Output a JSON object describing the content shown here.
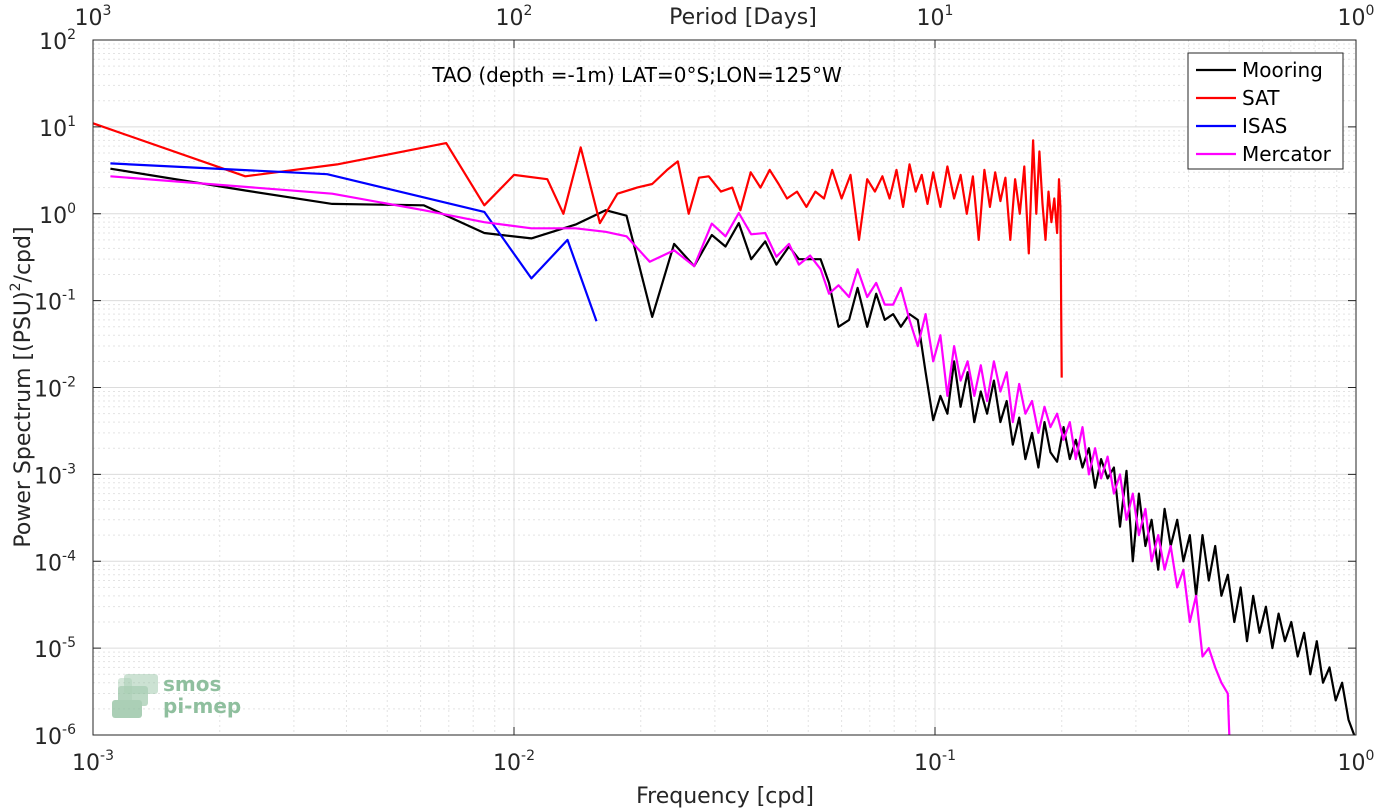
{
  "chart_data": {
    "type": "line",
    "title": "TAO (depth =-1m) LAT=0°S;LON=125°W",
    "xlabel": "Frequency [cpd]",
    "ylabel": "Power Spectrum [(PSU)",
    "ylabel_sup": "2",
    "ylabel_tail": "/cpd]",
    "x2label": "Period [Days]",
    "xscale": "log",
    "yscale": "log",
    "xlim": [
      0.001,
      1
    ],
    "ylim": [
      1e-06,
      100
    ],
    "grid": true,
    "legend_position": "top-right",
    "x_ticks": [
      "10",
      "10",
      "10",
      "10"
    ],
    "x_tick_exps": [
      "-3",
      "-2",
      "-1",
      "0"
    ],
    "y_ticks": [
      "10",
      "10",
      "10",
      "10",
      "10",
      "10",
      "10",
      "10",
      "10"
    ],
    "y_tick_exps": [
      "-6",
      "-5",
      "-4",
      "-3",
      "-2",
      "-1",
      "0",
      "1",
      "2"
    ],
    "x2_ticks": [
      "10",
      "10",
      "10",
      "10"
    ],
    "x2_tick_exps": [
      "3",
      "2",
      "1",
      "0"
    ],
    "series": [
      {
        "name": "Mooring",
        "color": "#000000",
        "points": [
          [
            0.0011,
            3.3
          ],
          [
            0.0023,
            1.85
          ],
          [
            0.0037,
            1.3
          ],
          [
            0.0061,
            1.25
          ],
          [
            0.0085,
            0.6
          ],
          [
            0.011,
            0.52
          ],
          [
            0.014,
            0.75
          ],
          [
            0.0165,
            1.1
          ],
          [
            0.0185,
            0.95
          ],
          [
            0.0213,
            0.065
          ],
          [
            0.024,
            0.45
          ],
          [
            0.0268,
            0.25
          ],
          [
            0.0295,
            0.57
          ],
          [
            0.0318,
            0.42
          ],
          [
            0.0342,
            0.78
          ],
          [
            0.0366,
            0.3
          ],
          [
            0.0395,
            0.48
          ],
          [
            0.042,
            0.26
          ],
          [
            0.045,
            0.42
          ],
          [
            0.0475,
            0.3
          ],
          [
            0.0505,
            0.3
          ],
          [
            0.0535,
            0.3
          ],
          [
            0.056,
            0.16
          ],
          [
            0.059,
            0.05
          ],
          [
            0.0625,
            0.06
          ],
          [
            0.0655,
            0.14
          ],
          [
            0.069,
            0.05
          ],
          [
            0.0725,
            0.12
          ],
          [
            0.076,
            0.06
          ],
          [
            0.0795,
            0.07
          ],
          [
            0.083,
            0.05
          ],
          [
            0.087,
            0.07
          ],
          [
            0.091,
            0.06
          ],
          [
            0.095,
            0.015
          ],
          [
            0.099,
            0.0042
          ],
          [
            0.103,
            0.008
          ],
          [
            0.107,
            0.005
          ],
          [
            0.111,
            0.02
          ],
          [
            0.115,
            0.006
          ],
          [
            0.1195,
            0.015
          ],
          [
            0.124,
            0.004
          ],
          [
            0.1285,
            0.009
          ],
          [
            0.133,
            0.005
          ],
          [
            0.138,
            0.012
          ],
          [
            0.143,
            0.004
          ],
          [
            0.148,
            0.007
          ],
          [
            0.153,
            0.0022
          ],
          [
            0.1585,
            0.0045
          ],
          [
            0.164,
            0.0015
          ],
          [
            0.17,
            0.003
          ],
          [
            0.176,
            0.0012
          ],
          [
            0.182,
            0.004
          ],
          [
            0.188,
            0.0018
          ],
          [
            0.195,
            0.0014
          ],
          [
            0.202,
            0.0035
          ],
          [
            0.209,
            0.0015
          ],
          [
            0.216,
            0.0025
          ],
          [
            0.224,
            0.0012
          ],
          [
            0.232,
            0.002
          ],
          [
            0.24,
            0.0007
          ],
          [
            0.248,
            0.0015
          ],
          [
            0.257,
            0.0009
          ],
          [
            0.266,
            0.0012
          ],
          [
            0.275,
            0.00025
          ],
          [
            0.285,
            0.0011
          ],
          [
            0.295,
            0.0001
          ],
          [
            0.305,
            0.0006
          ],
          [
            0.316,
            0.00015
          ],
          [
            0.327,
            0.0003
          ],
          [
            0.339,
            8e-05
          ],
          [
            0.351,
            0.0004
          ],
          [
            0.363,
            0.00015
          ],
          [
            0.376,
            0.0003
          ],
          [
            0.389,
            0.0001
          ],
          [
            0.403,
            0.0002
          ],
          [
            0.417,
            4e-05
          ],
          [
            0.432,
            0.0002
          ],
          [
            0.447,
            6e-05
          ],
          [
            0.463,
            0.00015
          ],
          [
            0.479,
            4e-05
          ],
          [
            0.496,
            7e-05
          ],
          [
            0.514,
            2e-05
          ],
          [
            0.532,
            5e-05
          ],
          [
            0.551,
            1.2e-05
          ],
          [
            0.57,
            4e-05
          ],
          [
            0.59,
            1.5e-05
          ],
          [
            0.611,
            3e-05
          ],
          [
            0.633,
            1e-05
          ],
          [
            0.655,
            2.5e-05
          ],
          [
            0.678,
            1.2e-05
          ],
          [
            0.702,
            2e-05
          ],
          [
            0.727,
            8e-06
          ],
          [
            0.753,
            1.5e-05
          ],
          [
            0.779,
            5e-06
          ],
          [
            0.807,
            1.2e-05
          ],
          [
            0.835,
            4e-06
          ],
          [
            0.865,
            6e-06
          ],
          [
            0.895,
            2.5e-06
          ],
          [
            0.927,
            4e-06
          ],
          [
            0.96,
            1.5e-06
          ],
          [
            0.99,
            1e-06
          ]
        ]
      },
      {
        "name": "SAT",
        "color": "#ff0000",
        "points": [
          [
            0.001,
            11.0
          ],
          [
            0.0023,
            2.7
          ],
          [
            0.0038,
            3.7
          ],
          [
            0.0069,
            6.5
          ],
          [
            0.0085,
            1.25
          ],
          [
            0.01,
            2.8
          ],
          [
            0.012,
            2.5
          ],
          [
            0.0131,
            1.0
          ],
          [
            0.0144,
            5.8
          ],
          [
            0.016,
            0.78
          ],
          [
            0.0176,
            1.7
          ],
          [
            0.0196,
            2.0
          ],
          [
            0.0213,
            2.2
          ],
          [
            0.0231,
            3.2
          ],
          [
            0.0245,
            4.0
          ],
          [
            0.026,
            1.0
          ],
          [
            0.0275,
            2.6
          ],
          [
            0.029,
            2.7
          ],
          [
            0.031,
            1.8
          ],
          [
            0.033,
            2.0
          ],
          [
            0.0345,
            1.1
          ],
          [
            0.0365,
            3.0
          ],
          [
            0.0385,
            2.0
          ],
          [
            0.0405,
            3.2
          ],
          [
            0.0425,
            2.2
          ],
          [
            0.0445,
            1.5
          ],
          [
            0.047,
            1.8
          ],
          [
            0.0495,
            1.2
          ],
          [
            0.052,
            1.8
          ],
          [
            0.0545,
            1.5
          ],
          [
            0.057,
            3.2
          ],
          [
            0.06,
            1.5
          ],
          [
            0.063,
            2.8
          ],
          [
            0.066,
            0.5
          ],
          [
            0.069,
            2.5
          ],
          [
            0.072,
            1.8
          ],
          [
            0.075,
            2.7
          ],
          [
            0.078,
            1.5
          ],
          [
            0.081,
            3.2
          ],
          [
            0.084,
            1.2
          ],
          [
            0.087,
            3.7
          ],
          [
            0.09,
            1.8
          ],
          [
            0.093,
            2.8
          ],
          [
            0.096,
            1.3
          ],
          [
            0.099,
            3.0
          ],
          [
            0.103,
            1.2
          ],
          [
            0.107,
            3.5
          ],
          [
            0.111,
            1.5
          ],
          [
            0.115,
            2.8
          ],
          [
            0.119,
            1.0
          ],
          [
            0.123,
            2.7
          ],
          [
            0.127,
            0.5
          ],
          [
            0.131,
            3.2
          ],
          [
            0.135,
            1.2
          ],
          [
            0.139,
            3.0
          ],
          [
            0.143,
            1.4
          ],
          [
            0.147,
            2.6
          ],
          [
            0.151,
            0.5
          ],
          [
            0.155,
            2.5
          ],
          [
            0.159,
            1.0
          ],
          [
            0.163,
            3.5
          ],
          [
            0.167,
            0.35
          ],
          [
            0.171,
            7.0
          ],
          [
            0.174,
            1.0
          ],
          [
            0.177,
            5.2
          ],
          [
            0.18,
            1.3
          ],
          [
            0.183,
            0.5
          ],
          [
            0.186,
            1.8
          ],
          [
            0.189,
            0.8
          ],
          [
            0.192,
            1.5
          ],
          [
            0.195,
            0.6
          ],
          [
            0.197,
            2.5
          ],
          [
            0.1985,
            1.2
          ],
          [
            0.2,
            0.013
          ]
        ]
      },
      {
        "name": "ISAS",
        "color": "#0000ff",
        "points": [
          [
            0.0011,
            3.8
          ],
          [
            0.0036,
            2.85
          ],
          [
            0.0085,
            1.05
          ],
          [
            0.011,
            0.18
          ],
          [
            0.0134,
            0.5
          ],
          [
            0.0157,
            0.058
          ]
        ]
      },
      {
        "name": "Mercator",
        "color": "#ff00ff",
        "points": [
          [
            0.0011,
            2.7
          ],
          [
            0.0037,
            1.7
          ],
          [
            0.0061,
            1.1
          ],
          [
            0.0085,
            0.8
          ],
          [
            0.011,
            0.68
          ],
          [
            0.014,
            0.68
          ],
          [
            0.0165,
            0.62
          ],
          [
            0.0185,
            0.55
          ],
          [
            0.021,
            0.28
          ],
          [
            0.024,
            0.38
          ],
          [
            0.0268,
            0.25
          ],
          [
            0.0295,
            0.77
          ],
          [
            0.0318,
            0.55
          ],
          [
            0.0342,
            1.02
          ],
          [
            0.0366,
            0.58
          ],
          [
            0.0395,
            0.6
          ],
          [
            0.042,
            0.32
          ],
          [
            0.045,
            0.45
          ],
          [
            0.0475,
            0.26
          ],
          [
            0.0505,
            0.33
          ],
          [
            0.0535,
            0.23
          ],
          [
            0.056,
            0.12
          ],
          [
            0.059,
            0.15
          ],
          [
            0.0625,
            0.11
          ],
          [
            0.0655,
            0.23
          ],
          [
            0.069,
            0.11
          ],
          [
            0.0725,
            0.16
          ],
          [
            0.076,
            0.09
          ],
          [
            0.0795,
            0.09
          ],
          [
            0.083,
            0.14
          ],
          [
            0.087,
            0.06
          ],
          [
            0.091,
            0.03
          ],
          [
            0.095,
            0.07
          ],
          [
            0.099,
            0.02
          ],
          [
            0.103,
            0.04
          ],
          [
            0.107,
            0.008
          ],
          [
            0.111,
            0.03
          ],
          [
            0.115,
            0.012
          ],
          [
            0.1195,
            0.02
          ],
          [
            0.124,
            0.008
          ],
          [
            0.1285,
            0.018
          ],
          [
            0.133,
            0.007
          ],
          [
            0.138,
            0.02
          ],
          [
            0.143,
            0.009
          ],
          [
            0.148,
            0.015
          ],
          [
            0.153,
            0.004
          ],
          [
            0.1585,
            0.011
          ],
          [
            0.164,
            0.005
          ],
          [
            0.17,
            0.007
          ],
          [
            0.176,
            0.003
          ],
          [
            0.182,
            0.006
          ],
          [
            0.188,
            0.0035
          ],
          [
            0.195,
            0.005
          ],
          [
            0.202,
            0.0025
          ],
          [
            0.209,
            0.004
          ],
          [
            0.216,
            0.0015
          ],
          [
            0.224,
            0.0035
          ],
          [
            0.232,
            0.001
          ],
          [
            0.24,
            0.002
          ],
          [
            0.248,
            0.0009
          ],
          [
            0.257,
            0.0016
          ],
          [
            0.266,
            0.0006
          ],
          [
            0.275,
            0.001
          ],
          [
            0.285,
            0.0003
          ],
          [
            0.295,
            0.0006
          ],
          [
            0.305,
            0.0002
          ],
          [
            0.316,
            0.0004
          ],
          [
            0.327,
            0.0001
          ],
          [
            0.339,
            0.0002
          ],
          [
            0.351,
            8e-05
          ],
          [
            0.363,
            0.00015
          ],
          [
            0.376,
            5e-05
          ],
          [
            0.389,
            8e-05
          ],
          [
            0.403,
            2e-05
          ],
          [
            0.417,
            4e-05
          ],
          [
            0.432,
            8e-06
          ],
          [
            0.447,
            1e-05
          ],
          [
            0.463,
            6e-06
          ],
          [
            0.479,
            4e-06
          ],
          [
            0.496,
            3e-06
          ],
          [
            0.5,
            1e-06
          ]
        ]
      }
    ]
  },
  "logo": {
    "line1": "smos",
    "line2": "pi-mep"
  }
}
